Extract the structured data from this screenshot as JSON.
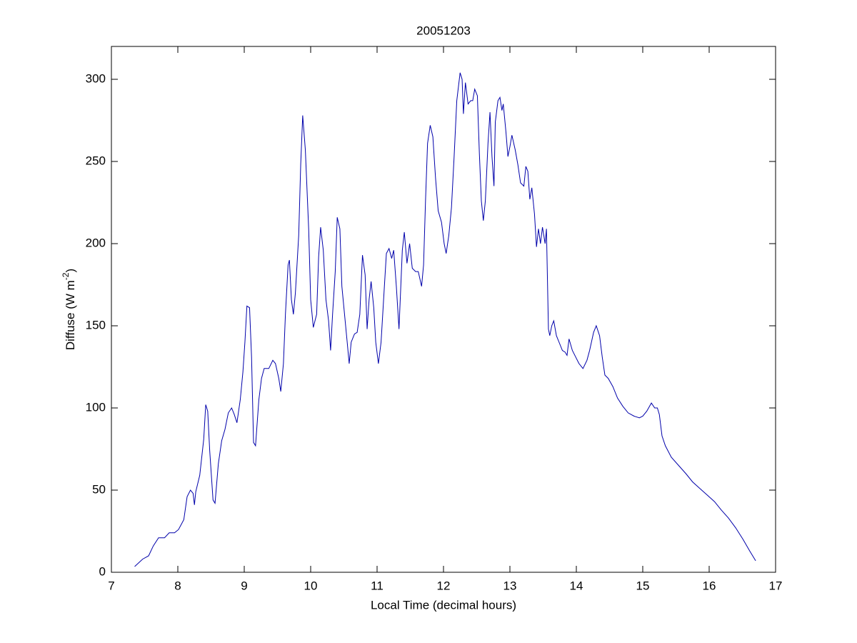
{
  "chart_data": {
    "type": "line",
    "title": "20051203",
    "x_label": "Local Time (decimal hours)",
    "y_label": {
      "text": "Diffuse (W m",
      "superscript": "-2",
      "suffix": ")"
    },
    "xlim": [
      7,
      17
    ],
    "xticks": [
      7,
      8,
      9,
      10,
      11,
      12,
      13,
      14,
      15,
      16,
      17
    ],
    "ylim": [
      0,
      320
    ],
    "yticks": [
      0,
      50,
      100,
      150,
      200,
      250,
      300
    ],
    "grid": false,
    "x": [
      7.35,
      7.47,
      7.56,
      7.63,
      7.71,
      7.8,
      7.87,
      7.95,
      8.01,
      8.09,
      8.14,
      8.19,
      8.23,
      8.25,
      8.27,
      8.33,
      8.39,
      8.42,
      8.45,
      8.48,
      8.53,
      8.56,
      8.61,
      8.66,
      8.71,
      8.76,
      8.81,
      8.85,
      8.89,
      8.94,
      8.98,
      9.01,
      9.04,
      9.08,
      9.11,
      9.14,
      9.17,
      9.22,
      9.26,
      9.3,
      9.37,
      9.43,
      9.47,
      9.52,
      9.55,
      9.59,
      9.62,
      9.66,
      9.68,
      9.71,
      9.74,
      9.77,
      9.82,
      9.85,
      9.88,
      9.92,
      9.97,
      10.0,
      10.04,
      10.09,
      10.12,
      10.15,
      10.19,
      10.23,
      10.27,
      10.3,
      10.33,
      10.37,
      10.4,
      10.44,
      10.47,
      10.51,
      10.55,
      10.58,
      10.61,
      10.66,
      10.7,
      10.74,
      10.78,
      10.82,
      10.85,
      10.88,
      10.91,
      10.95,
      10.98,
      11.02,
      11.06,
      11.11,
      11.14,
      11.18,
      11.22,
      11.25,
      11.29,
      11.33,
      11.38,
      11.41,
      11.45,
      11.49,
      11.53,
      11.58,
      11.62,
      11.67,
      11.7,
      11.73,
      11.76,
      11.8,
      11.84,
      11.88,
      11.92,
      11.97,
      12.01,
      12.04,
      12.08,
      12.12,
      12.16,
      12.2,
      12.25,
      12.28,
      12.3,
      12.33,
      12.37,
      12.41,
      12.44,
      12.47,
      12.51,
      12.54,
      12.57,
      12.6,
      12.63,
      12.67,
      12.7,
      12.73,
      12.76,
      12.78,
      12.82,
      12.85,
      12.88,
      12.9,
      12.94,
      12.97,
      13.0,
      13.03,
      13.08,
      13.12,
      13.16,
      13.21,
      13.24,
      13.27,
      13.3,
      13.33,
      13.37,
      13.4,
      13.43,
      13.46,
      13.49,
      13.53,
      13.55,
      13.58,
      13.6,
      13.63,
      13.66,
      13.7,
      13.74,
      13.79,
      13.83,
      13.86,
      13.89,
      13.94,
      13.99,
      14.04,
      14.1,
      14.16,
      14.2,
      14.26,
      14.3,
      14.35,
      14.39,
      14.43,
      14.48,
      14.55,
      14.62,
      14.7,
      14.78,
      14.87,
      14.95,
      15.0,
      15.06,
      15.13,
      15.18,
      15.22,
      15.25,
      15.29,
      15.34,
      15.43,
      15.54,
      15.65,
      15.75,
      15.86,
      15.97,
      16.08,
      16.18,
      16.29,
      16.4,
      16.51,
      16.61,
      16.7
    ],
    "series": [
      {
        "color": "#0000aa",
        "values": [
          3.5,
          8,
          10,
          16,
          21,
          21,
          24,
          24,
          26,
          32,
          46,
          50,
          48,
          41,
          49,
          59,
          81,
          102,
          98,
          74,
          44,
          42,
          66,
          80,
          87,
          97,
          100,
          96,
          91,
          105,
          122,
          140,
          162,
          161,
          131,
          79,
          77,
          105,
          118,
          124,
          124,
          129,
          127,
          118,
          110,
          127,
          157,
          187,
          190,
          166,
          157,
          170,
          205,
          248,
          278,
          257,
          209,
          166,
          149,
          157,
          192,
          210,
          196,
          166,
          153,
          135,
          157,
          183,
          216,
          209,
          174,
          157,
          140,
          127,
          140,
          145,
          146,
          157,
          193,
          181,
          148,
          166,
          177,
          161,
          140,
          127,
          140,
          174,
          194,
          197,
          191,
          196,
          174,
          148,
          196,
          207,
          188,
          200,
          185,
          183,
          183,
          174,
          187,
          227,
          261,
          272,
          265,
          240,
          220,
          213,
          200,
          194,
          205,
          222,
          253,
          287,
          304,
          300,
          279,
          298,
          285,
          287,
          287,
          294,
          290,
          255,
          226,
          214,
          226,
          261,
          280,
          253,
          235,
          274,
          287,
          289,
          281,
          285,
          268,
          253,
          259,
          266,
          257,
          248,
          237,
          235,
          247,
          244,
          227,
          234,
          218,
          198,
          209,
          200,
          210,
          200,
          209,
          148,
          144,
          150,
          153,
          144,
          140,
          135,
          134,
          132,
          142,
          135,
          131,
          127,
          124,
          129,
          135,
          146,
          150,
          144,
          131,
          120,
          118,
          113,
          106,
          101,
          97,
          95,
          94,
          95,
          98,
          103,
          100,
          100,
          96,
          83,
          77,
          70,
          65,
          60,
          55,
          51,
          47,
          43,
          38,
          33,
          27,
          20,
          13,
          7
        ]
      }
    ]
  }
}
